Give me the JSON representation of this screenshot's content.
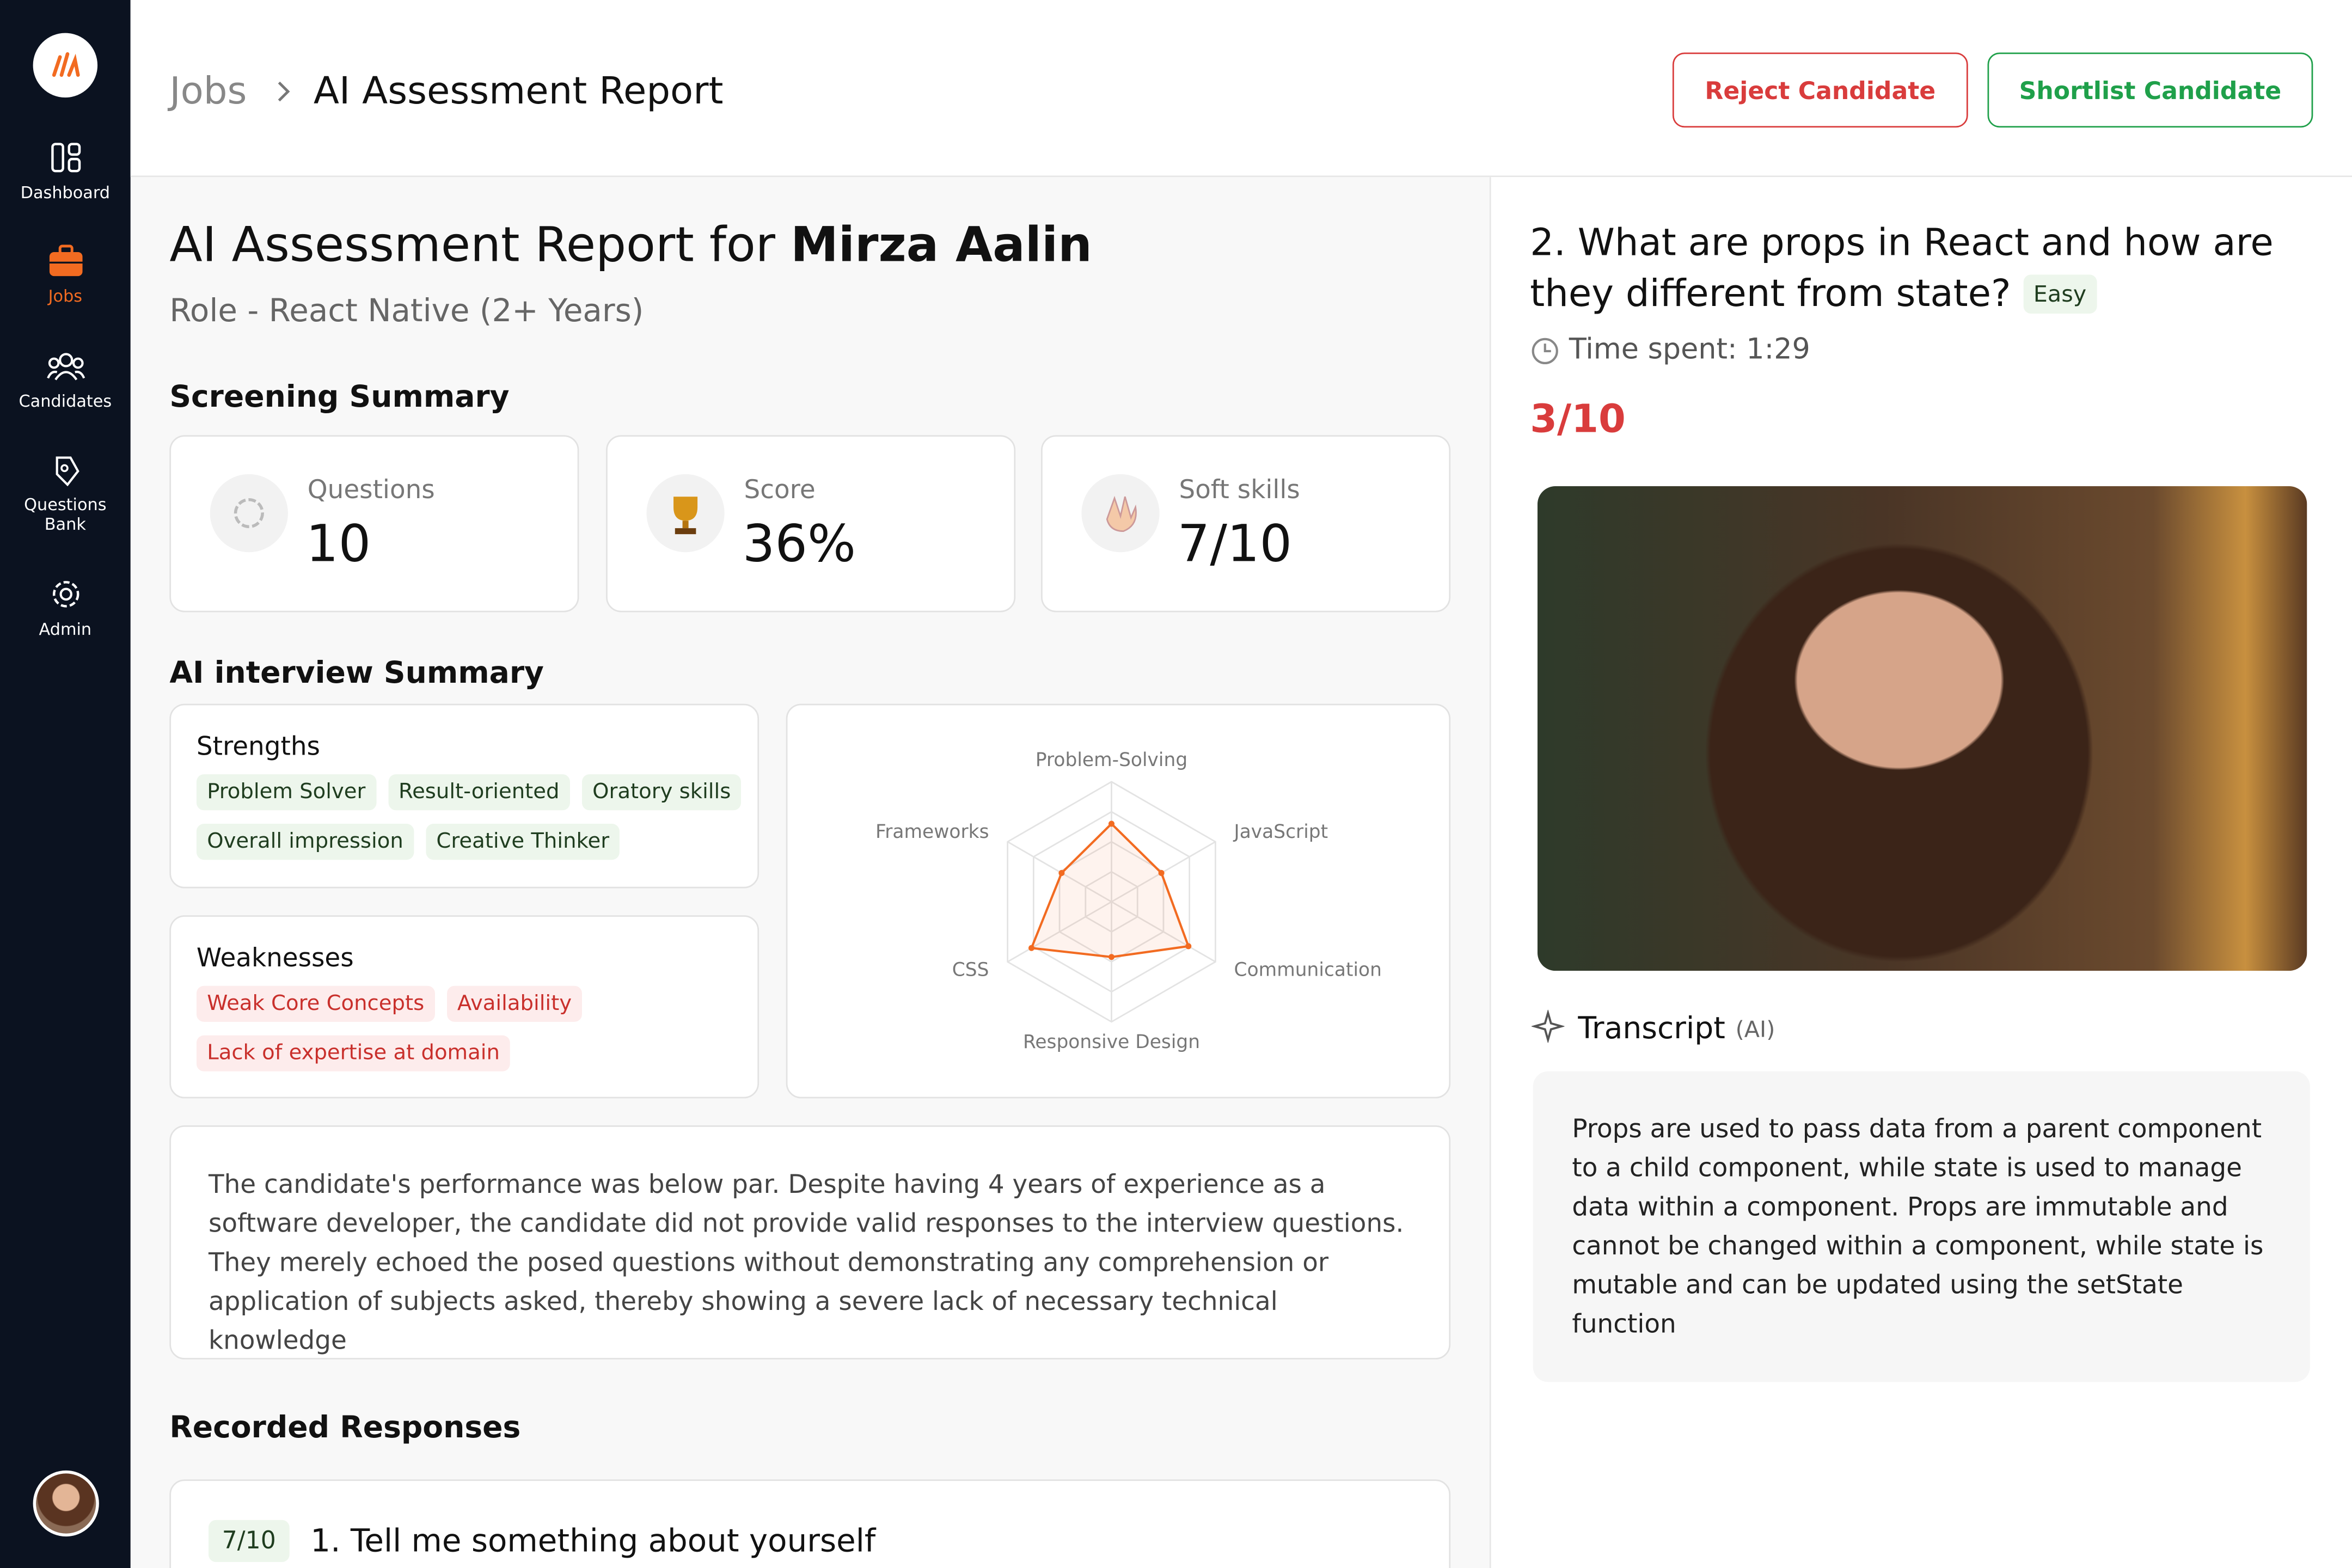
{
  "sidebar": {
    "items": [
      "Dashboard",
      "Jobs",
      "Candidates",
      "Questions Bank",
      "Admin"
    ]
  },
  "header": {
    "breadcrumb": [
      "Jobs",
      "AI Assessment Report"
    ],
    "buttons": [
      "Reject Candidate",
      "Shortlist Candidate"
    ]
  },
  "report": {
    "title": "AI Assessment Report for ",
    "candidate": "Mirza Aalin",
    "role": "Role - React Native (2+ Years)",
    "screening_title": "Screening Summary",
    "cards": [
      {
        "label": "Questions",
        "value": "10"
      },
      {
        "label": "Score",
        "value": "36%"
      },
      {
        "label": "Soft skills",
        "value": "7/10"
      }
    ],
    "interview_title": "AI interview Summary",
    "strengths": {
      "title": "Strengths",
      "tags": [
        "Problem Solver",
        "Result-oriented",
        "Oratory skills",
        "Overall impression",
        "Creative Thinker"
      ]
    },
    "weaknesses": {
      "title": "Weaknesses",
      "tags": [
        "Weak Core Concepts",
        "Availability",
        "Lack of expertise at domain"
      ]
    },
    "summary": "The candidate's performance was below par. Despite having 4 years of experience as a software developer, the candidate did not provide valid responses to the interview questions. They merely echoed the posed questions without demonstrating any comprehension or application of subjects asked, thereby showing a severe lack of necessary technical knowledge",
    "recorded_title": "Recorded Responses",
    "responses": [
      {
        "score": "7/10",
        "question": "1. Tell me something about yourself"
      }
    ]
  },
  "question": {
    "title": "2. What are props in React and how are they different from state?",
    "difficulty": "Easy",
    "time": "Time spent: 1:29",
    "score": "3/10",
    "transcript_title": "Transcript",
    "transcript_tag": "(AI)",
    "transcript": "Props are used to pass data from a parent component to a child component, while state is used to manage data within a component. Props are immutable and cannot be changed within a component, while state is mutable and can be updated using the setState function"
  },
  "chart_data": {
    "type": "radar",
    "categories": [
      "Problem-Solving",
      "JavaScript",
      "Communication",
      "Responsive Design",
      "CSS",
      "Frameworks"
    ],
    "values": [
      6.5,
      4.8,
      7.4,
      4.6,
      7.7,
      4.8
    ],
    "rlim": [
      0,
      10
    ],
    "rticks": [
      2.5,
      5,
      7.5,
      10
    ],
    "color": "#f26b21"
  }
}
